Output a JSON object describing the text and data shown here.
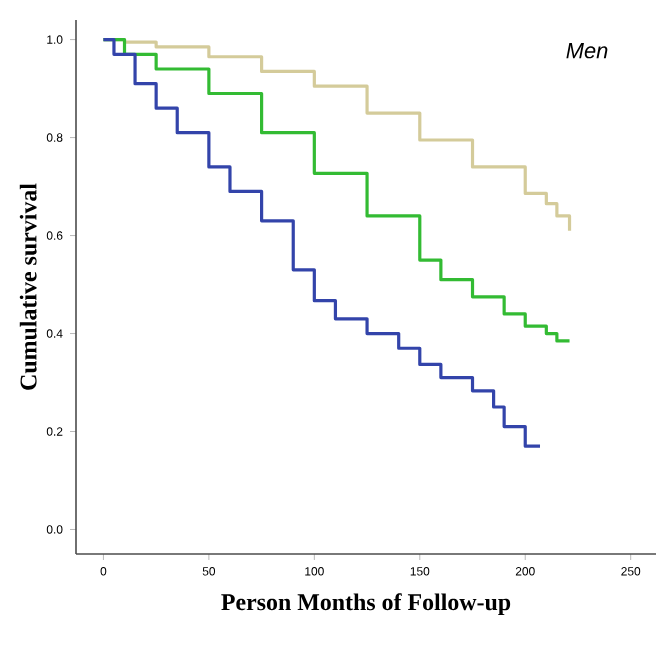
{
  "chart_data": {
    "type": "step",
    "xlabel": "Person Months of Follow-up",
    "ylabel": "Cumulative survival",
    "annotations": [
      "Men"
    ],
    "xlim": [
      -13,
      262
    ],
    "ylim": [
      -0.05,
      1.04
    ],
    "xticks": [
      0,
      50,
      100,
      150,
      200,
      250
    ],
    "yticks": [
      {
        "value": 0,
        "label": "0.0"
      },
      {
        "value": 0.2,
        "label": "0.2"
      },
      {
        "value": 0.4,
        "label": "0.4"
      },
      {
        "value": 0.6,
        "label": "0.6"
      },
      {
        "value": 0.8,
        "label": "0.8"
      },
      {
        "value": 1.0,
        "label": "1.0"
      }
    ],
    "grid": false,
    "marker": "none",
    "line_style": "solid",
    "series": [
      {
        "color": "#d4cb9a",
        "x": [
          0,
          10,
          25,
          50,
          75,
          100,
          125,
          150,
          175,
          200,
          210,
          215,
          221
        ],
        "values": [
          1.0,
          0.995,
          0.985,
          0.965,
          0.935,
          0.905,
          0.85,
          0.795,
          0.74,
          0.686,
          0.665,
          0.64,
          0.61
        ]
      },
      {
        "color": "#33bb33",
        "x": [
          0,
          10,
          25,
          50,
          75,
          100,
          125,
          150,
          160,
          175,
          190,
          200,
          210,
          215,
          221
        ],
        "values": [
          1.0,
          0.97,
          0.94,
          0.89,
          0.81,
          0.727,
          0.64,
          0.55,
          0.51,
          0.475,
          0.44,
          0.415,
          0.4,
          0.385,
          0.385
        ]
      },
      {
        "color": "#3344aa",
        "x": [
          0,
          5,
          15,
          25,
          35,
          50,
          60,
          75,
          90,
          100,
          110,
          125,
          140,
          150,
          160,
          175,
          185,
          190,
          200,
          207
        ],
        "values": [
          1.0,
          0.97,
          0.91,
          0.86,
          0.81,
          0.74,
          0.69,
          0.63,
          0.53,
          0.467,
          0.43,
          0.4,
          0.37,
          0.337,
          0.31,
          0.283,
          0.25,
          0.21,
          0.17,
          0.17
        ]
      }
    ]
  }
}
